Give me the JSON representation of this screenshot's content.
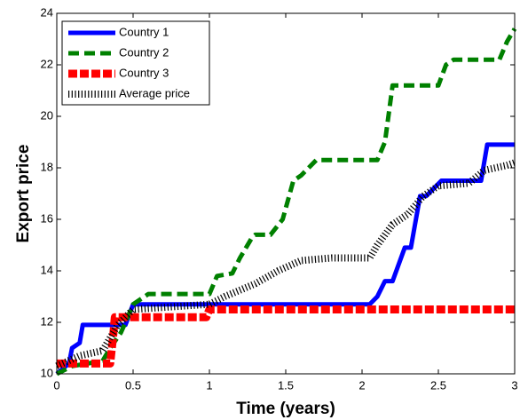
{
  "chart_data": {
    "type": "line",
    "xlabel": "Time (years)",
    "ylabel": "Export price",
    "xlim": [
      0,
      3
    ],
    "ylim": [
      10,
      24
    ],
    "xticks": [
      0,
      0.5,
      1,
      1.5,
      2,
      2.5,
      3
    ],
    "yticks": [
      10,
      12,
      14,
      16,
      18,
      20,
      22,
      24
    ],
    "legend": "upper left",
    "series": [
      {
        "name": "Country 1",
        "color": "#0000ff",
        "linestyle": "solid",
        "x": [
          0,
          0.08,
          0.1,
          0.15,
          0.17,
          0.45,
          0.5,
          2.05,
          2.1,
          2.15,
          2.2,
          2.28,
          2.32,
          2.38,
          2.42,
          2.52,
          2.56,
          2.78,
          2.82,
          3
        ],
        "values": [
          10,
          10.4,
          11,
          11.2,
          11.9,
          11.9,
          12.7,
          12.7,
          13,
          13.6,
          13.6,
          14.9,
          14.9,
          16.9,
          16.9,
          17.5,
          17.5,
          17.5,
          18.9,
          18.9
        ]
      },
      {
        "name": "Country 2",
        "color": "#008000",
        "linestyle": "dashed",
        "x": [
          0,
          0.1,
          0.3,
          0.35,
          0.42,
          0.45,
          0.5,
          0.6,
          1.0,
          1.05,
          1.15,
          1.2,
          1.28,
          1.3,
          1.4,
          1.48,
          1.55,
          1.6,
          1.7,
          2.1,
          2.15,
          2.2,
          2.5,
          2.55,
          2.6,
          2.9,
          2.95,
          3
        ],
        "values": [
          10,
          10.3,
          10.5,
          11,
          11.6,
          12,
          12.7,
          13.1,
          13.1,
          13.8,
          13.9,
          14.5,
          15.3,
          15.4,
          15.4,
          16,
          17.5,
          17.7,
          18.3,
          18.3,
          19,
          21.2,
          21.2,
          22,
          22.2,
          22.2,
          22.9,
          23.4
        ]
      },
      {
        "name": "Country 3",
        "color": "#ff0000",
        "linestyle": "dashdot",
        "x": [
          0,
          0.35,
          0.37,
          0.38,
          0.98,
          1.0,
          3
        ],
        "values": [
          10.4,
          10.4,
          11.5,
          12.2,
          12.2,
          12.5,
          12.5
        ]
      },
      {
        "name": "Average price",
        "color": "#000000",
        "linestyle": "dotted",
        "x": [
          0,
          0.15,
          0.3,
          0.4,
          0.5,
          1.0,
          1.1,
          1.3,
          1.45,
          1.6,
          1.8,
          2.05,
          2.1,
          2.2,
          2.3,
          2.4,
          2.5,
          2.7,
          2.8,
          2.95,
          3
        ],
        "values": [
          10.3,
          10.7,
          10.9,
          11.9,
          12.5,
          12.7,
          13,
          13.5,
          14,
          14.4,
          14.5,
          14.5,
          15,
          15.8,
          16.2,
          16.9,
          17.3,
          17.4,
          17.9,
          18.1,
          18.2
        ]
      }
    ]
  }
}
